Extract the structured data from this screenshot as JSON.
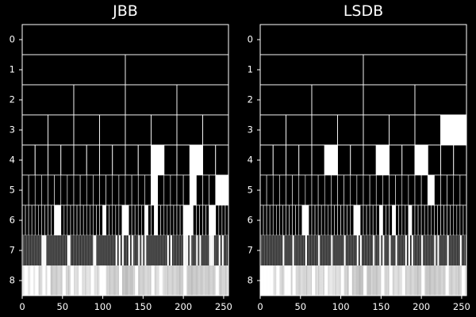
{
  "chart_data": [
    {
      "type": "heatmap",
      "title": "JBB",
      "xlabel": "",
      "ylabel": "",
      "xlim": [
        0,
        256
      ],
      "ylim": [
        0,
        9
      ],
      "x_ticks": [
        "0",
        "50",
        "100",
        "150",
        "200",
        "250"
      ],
      "y_ticks": [
        "0",
        "1",
        "2",
        "3",
        "4",
        "5",
        "6",
        "7",
        "8"
      ],
      "levels": [
        {
          "level": 0,
          "dark": [
            0
          ],
          "lit": []
        },
        {
          "level": 1,
          "dark": [
            0,
            1
          ],
          "lit": []
        },
        {
          "level": 2,
          "dark": [
            0,
            1,
            2,
            3
          ],
          "lit": []
        },
        {
          "level": 3,
          "dark": [
            0,
            1,
            2,
            3,
            4,
            5,
            6,
            7
          ],
          "lit": []
        },
        {
          "level": 4,
          "dark": [
            0,
            1,
            2,
            3,
            4,
            5,
            6,
            7,
            8,
            9,
            11,
            12,
            14,
            15
          ],
          "lit": [
            10,
            13
          ]
        },
        {
          "level": 5,
          "dark": [
            0,
            1,
            2,
            3,
            4,
            5,
            6,
            7,
            8,
            9,
            10,
            11,
            12,
            13,
            14,
            15,
            16,
            17,
            18,
            19,
            20,
            21,
            22,
            23,
            24,
            25,
            26,
            27,
            28,
            29
          ],
          "lit": [
            20,
            26,
            30,
            31
          ]
        },
        {
          "level": 6,
          "dark": [
            0,
            1,
            2,
            3,
            4,
            5,
            6,
            7,
            8,
            9,
            10,
            11,
            12,
            13,
            14,
            15,
            16,
            17,
            18,
            19,
            20,
            21,
            22,
            23,
            24,
            25,
            26,
            27,
            28,
            29,
            30,
            31,
            32,
            33,
            34,
            35,
            36,
            37,
            38,
            39,
            40,
            41,
            42,
            43,
            44,
            45,
            46,
            47,
            48,
            49,
            50,
            51,
            52,
            53,
            54,
            55,
            56,
            57,
            58,
            59,
            60,
            61,
            62,
            63
          ],
          "lit": [
            10,
            11,
            25,
            31,
            32,
            38,
            41,
            50,
            51,
            52,
            58,
            59
          ]
        },
        {
          "level": 7,
          "dark": [],
          "lit": [
            12,
            13,
            14,
            28,
            29,
            44,
            45,
            58,
            60,
            62,
            66,
            68,
            72,
            74,
            76,
            90,
            92,
            100,
            101,
            102,
            104,
            108,
            110,
            116,
            117,
            118,
            122,
            124
          ]
        },
        {
          "level": 8,
          "dark": [],
          "lit": [
            3,
            10,
            16,
            25,
            31,
            50,
            60,
            70,
            85,
            96,
            100,
            120,
            140,
            160,
            170,
            200,
            240
          ]
        }
      ]
    },
    {
      "type": "heatmap",
      "title": "LSDB",
      "xlabel": "",
      "ylabel": "",
      "xlim": [
        0,
        256
      ],
      "ylim": [
        0,
        9
      ],
      "x_ticks": [
        "0",
        "50",
        "100",
        "150",
        "200",
        "250"
      ],
      "y_ticks": [
        "0",
        "1",
        "2",
        "3",
        "4",
        "5",
        "6",
        "7",
        "8"
      ],
      "levels": [
        {
          "level": 0,
          "dark": [
            0
          ],
          "lit": []
        },
        {
          "level": 1,
          "dark": [
            0,
            1
          ],
          "lit": []
        },
        {
          "level": 2,
          "dark": [
            0,
            1,
            2,
            3
          ],
          "lit": []
        },
        {
          "level": 3,
          "dark": [
            0,
            1,
            2,
            3,
            4,
            5,
            6
          ],
          "lit": [
            7
          ]
        },
        {
          "level": 4,
          "dark": [
            0,
            1,
            2,
            3,
            4,
            5,
            6,
            7,
            8,
            9,
            10,
            11,
            12,
            13,
            14,
            15
          ],
          "lit": [
            5,
            9,
            12
          ]
        },
        {
          "level": 5,
          "dark": [
            0,
            1,
            2,
            3,
            4,
            5,
            6,
            7,
            8,
            9,
            10,
            11,
            12,
            13,
            14,
            15,
            16,
            17,
            18,
            19,
            20,
            21,
            22,
            23,
            24,
            25,
            26,
            27,
            28,
            29,
            30,
            31
          ],
          "lit": [
            26
          ]
        },
        {
          "level": 6,
          "dark": [
            0,
            1,
            2,
            3,
            4,
            5,
            6,
            7,
            8,
            9,
            10,
            11,
            12,
            13,
            14,
            15,
            16,
            17,
            18,
            19,
            20,
            21,
            22,
            23,
            24,
            25,
            26,
            27,
            28,
            29,
            30,
            31,
            32,
            33,
            34,
            35,
            36,
            37,
            38,
            39,
            40,
            41,
            42,
            43,
            44,
            45,
            46,
            47,
            48,
            49,
            50,
            51,
            52,
            53,
            54,
            55,
            56,
            57,
            58,
            59,
            60,
            61,
            62,
            63
          ],
          "lit": [
            13,
            14,
            29,
            30,
            37,
            41,
            46
          ]
        },
        {
          "level": 7,
          "dark": [],
          "lit": [
            14,
            20,
            28,
            36,
            44,
            52,
            60,
            62,
            70,
            74,
            76,
            80,
            84,
            90,
            92,
            94,
            100,
            108,
            110,
            116,
            124
          ]
        },
        {
          "level": 8,
          "dark": [],
          "lit": [
            0,
            4,
            8,
            12,
            20,
            30,
            34,
            40,
            64,
            80,
            100,
            110,
            128,
            150,
            160,
            176,
            200,
            230,
            250
          ]
        }
      ]
    }
  ]
}
